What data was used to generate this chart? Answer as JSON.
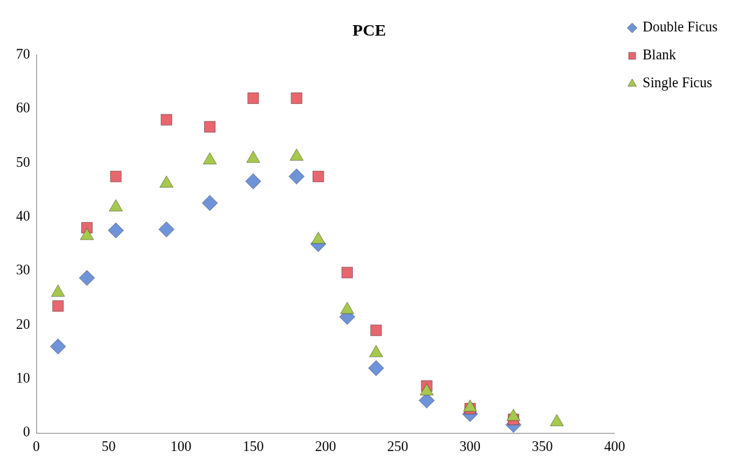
{
  "chart_data": {
    "type": "scatter",
    "title": "PCE",
    "xlim": [
      0,
      400
    ],
    "xticks": [
      0,
      50,
      100,
      150,
      200,
      250,
      300,
      350,
      400
    ],
    "ylim": [
      0,
      70
    ],
    "yticks": [
      0,
      10,
      20,
      30,
      40,
      50,
      60,
      70
    ],
    "grid": false,
    "legend": "top right",
    "series": [
      {
        "name": "Double Ficus",
        "color": "#6f93d8",
        "marker": "diamond",
        "x": [
          15,
          35,
          55,
          90,
          120,
          150,
          180,
          195,
          215,
          235,
          270,
          300,
          330
        ],
        "values": [
          16,
          28.7,
          37.5,
          37.7,
          42.6,
          46.6,
          47.5,
          35,
          21.5,
          12,
          6,
          3.5,
          1.5
        ]
      },
      {
        "name": "Blank",
        "color": "#e8666e",
        "marker": "square",
        "x": [
          15,
          35,
          55,
          90,
          120,
          150,
          180,
          195,
          215,
          235,
          270,
          300,
          330
        ],
        "values": [
          23.5,
          38,
          47.5,
          58,
          56.7,
          62,
          62,
          47.5,
          29.7,
          19,
          8.7,
          4.5,
          2.5
        ]
      },
      {
        "name": "Single Ficus",
        "color": "#a6c84c",
        "marker": "triangle",
        "x": [
          15,
          35,
          55,
          90,
          120,
          150,
          180,
          195,
          215,
          235,
          270,
          300,
          330,
          360
        ],
        "values": [
          26,
          36.5,
          41.8,
          46.2,
          50.5,
          50.8,
          51.2,
          35.8,
          22.8,
          14.8,
          7.7,
          4.7,
          3,
          2
        ]
      }
    ]
  }
}
